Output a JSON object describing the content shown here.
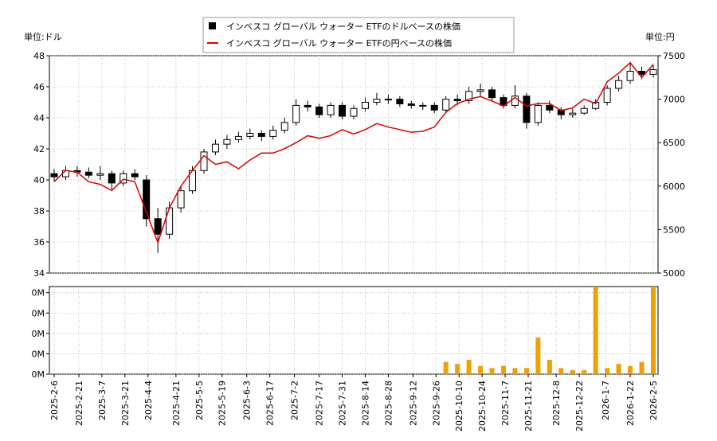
{
  "chart_data": [
    {
      "type": "candlestick",
      "ylabel": "単位:ドル",
      "y2label": "単位:円",
      "x": [
        "2025-2-6",
        "2025-2-13",
        "2025-2-20",
        "2025-2-27",
        "2025-3-6",
        "2025-3-13",
        "2025-3-20",
        "2025-3-27",
        "2025-4-3",
        "2025-4-10",
        "2025-4-17",
        "2025-4-24",
        "2025-5-1",
        "2025-5-8",
        "2025-5-15",
        "2025-5-22",
        "2025-5-29",
        "2025-6-5",
        "2025-6-12",
        "2025-6-19",
        "2025-6-26",
        "2025-7-3",
        "2025-7-10",
        "2025-7-17",
        "2025-7-24",
        "2025-7-31",
        "2025-8-7",
        "2025-8-14",
        "2025-8-21",
        "2025-8-28",
        "2025-9-4",
        "2025-9-11",
        "2025-9-18",
        "2025-9-25",
        "2025-10-2",
        "2025-10-9",
        "2025-10-16",
        "2025-10-23",
        "2025-10-30",
        "2025-11-6",
        "2025-11-13",
        "2025-11-20",
        "2025-11-27",
        "2025-12-4",
        "2025-12-11",
        "2025-12-18",
        "2025-12-25",
        "2026-1-1",
        "2026-1-8",
        "2026-1-15",
        "2026-1-22",
        "2026-1-29",
        "2026-2-5"
      ],
      "series": [
        {
          "name": "インベスコ グローバル ウォーター ETFのドルベースの株価",
          "color": "#000000",
          "open": [
            40.4,
            40.2,
            40.6,
            40.5,
            40.3,
            40.4,
            39.8,
            40.4,
            40.0,
            37.5,
            36.5,
            38.2,
            39.3,
            40.6,
            41.8,
            42.3,
            42.6,
            42.8,
            43.0,
            42.8,
            43.2,
            43.7,
            44.8,
            44.7,
            44.2,
            44.8,
            44.1,
            44.6,
            45.0,
            45.2,
            45.2,
            44.9,
            44.8,
            44.8,
            44.5,
            45.2,
            45.1,
            45.7,
            45.8,
            45.3,
            44.8,
            45.4,
            43.7,
            44.8,
            44.5,
            44.2,
            44.3,
            44.6,
            45.0,
            45.9,
            46.4,
            47.0,
            46.8
          ],
          "high": [
            40.7,
            40.9,
            40.9,
            40.8,
            40.9,
            40.6,
            40.6,
            40.7,
            40.3,
            38.2,
            38.6,
            39.6,
            40.9,
            42.0,
            42.6,
            42.9,
            43.1,
            43.3,
            43.2,
            43.5,
            44.0,
            45.2,
            45.1,
            44.9,
            45.0,
            45.0,
            44.8,
            45.3,
            45.6,
            45.5,
            45.4,
            45.1,
            45.0,
            45.0,
            45.4,
            45.5,
            46.0,
            46.2,
            46.0,
            45.5,
            46.1,
            45.6,
            45.0,
            45.1,
            44.7,
            44.6,
            44.8,
            45.2,
            46.1,
            46.7,
            47.6,
            47.3,
            47.4
          ],
          "low": [
            39.9,
            40.0,
            40.2,
            40.1,
            40.0,
            39.4,
            39.6,
            40.0,
            37.0,
            35.3,
            36.2,
            37.9,
            39.1,
            40.4,
            41.6,
            42.0,
            42.4,
            42.6,
            42.5,
            42.6,
            43.0,
            43.5,
            44.4,
            44.0,
            44.0,
            43.9,
            43.9,
            44.4,
            44.8,
            44.9,
            44.7,
            44.6,
            44.5,
            44.3,
            44.3,
            44.8,
            44.9,
            45.4,
            45.1,
            44.6,
            44.6,
            43.3,
            43.5,
            44.3,
            43.9,
            44.0,
            44.2,
            44.5,
            44.8,
            45.7,
            46.2,
            46.5,
            46.6
          ],
          "close": [
            40.2,
            40.6,
            40.5,
            40.3,
            40.4,
            39.8,
            40.4,
            40.2,
            37.5,
            36.5,
            38.2,
            39.3,
            40.6,
            41.8,
            42.3,
            42.6,
            42.8,
            43.0,
            42.8,
            43.2,
            43.7,
            44.8,
            44.7,
            44.2,
            44.8,
            44.1,
            44.6,
            45.0,
            45.2,
            45.2,
            44.9,
            44.8,
            44.8,
            44.5,
            45.2,
            45.1,
            45.7,
            45.8,
            45.3,
            44.8,
            45.4,
            43.7,
            44.8,
            44.5,
            44.2,
            44.3,
            44.6,
            45.0,
            45.9,
            46.4,
            47.0,
            46.8,
            47.1
          ]
        },
        {
          "name": "インベスコ グローバル ウォーター ETFの円ベースの株価",
          "color": "#dd0000",
          "axis": "y2",
          "values": [
            6050,
            6180,
            6160,
            6050,
            6020,
            5950,
            6080,
            6050,
            5700,
            5350,
            5750,
            6000,
            6180,
            6350,
            6250,
            6280,
            6200,
            6300,
            6380,
            6380,
            6430,
            6500,
            6580,
            6550,
            6580,
            6650,
            6600,
            6650,
            6720,
            6680,
            6650,
            6620,
            6630,
            6680,
            6850,
            6950,
            7000,
            7030,
            6980,
            6920,
            7020,
            6920,
            6950,
            6950,
            6870,
            6900,
            7000,
            6950,
            7200,
            7300,
            7420,
            7250,
            7400
          ]
        }
      ],
      "ylim": [
        34,
        48
      ],
      "yticks": [
        34,
        36,
        38,
        40,
        42,
        44,
        46,
        48
      ],
      "y2lim": [
        5000,
        7500
      ],
      "y2ticks": [
        5000,
        5500,
        6000,
        6500,
        7000,
        7500
      ],
      "grid": true
    },
    {
      "type": "bar",
      "color": "#f0a000",
      "x": [
        "2025-2-6",
        "2025-2-13",
        "2025-2-20",
        "2025-2-27",
        "2025-3-6",
        "2025-3-13",
        "2025-3-20",
        "2025-3-27",
        "2025-4-3",
        "2025-4-10",
        "2025-4-17",
        "2025-4-24",
        "2025-5-1",
        "2025-5-8",
        "2025-5-15",
        "2025-5-22",
        "2025-5-29",
        "2025-6-5",
        "2025-6-12",
        "2025-6-19",
        "2025-6-26",
        "2025-7-3",
        "2025-7-10",
        "2025-7-17",
        "2025-7-24",
        "2025-7-31",
        "2025-8-7",
        "2025-8-14",
        "2025-8-21",
        "2025-8-28",
        "2025-9-4",
        "2025-9-11",
        "2025-9-18",
        "2025-9-25",
        "2025-10-2",
        "2025-10-9",
        "2025-10-16",
        "2025-10-23",
        "2025-10-30",
        "2025-11-6",
        "2025-11-13",
        "2025-11-20",
        "2025-11-27",
        "2025-12-4",
        "2025-12-11",
        "2025-12-18",
        "2025-12-25",
        "2026-1-1",
        "2026-1-8",
        "2026-1-15",
        "2026-1-22",
        "2026-1-29",
        "2026-2-5"
      ],
      "values": [
        0,
        0,
        0,
        0,
        0,
        0,
        0,
        0,
        0,
        0,
        0,
        0,
        0,
        0,
        0,
        0,
        0,
        0,
        0,
        0,
        0,
        0,
        0,
        0,
        0,
        0,
        0,
        0,
        0,
        0,
        0,
        0,
        0,
        0,
        60000,
        50000,
        70000,
        40000,
        30000,
        40000,
        30000,
        30000,
        180000,
        70000,
        30000,
        20000,
        20000,
        430000,
        30000,
        50000,
        40000,
        60000,
        430000
      ],
      "ylim": [
        0,
        430000
      ],
      "yticks": [
        {
          "value": 0,
          "label": "0M"
        },
        {
          "value": 100000,
          "label": "0M"
        },
        {
          "value": 200000,
          "label": "0M"
        },
        {
          "value": 300000,
          "label": "0M"
        },
        {
          "value": 400000,
          "label": "0M"
        }
      ],
      "xticks": [
        "2025-2-6",
        "2025-2-21",
        "2025-3-7",
        "2025-3-21",
        "2025-4-4",
        "2025-4-21",
        "2025-5-5",
        "2025-5-19",
        "2025-6-3",
        "2025-6-17",
        "2025-7-2",
        "2025-7-17",
        "2025-7-31",
        "2025-8-14",
        "2025-8-28",
        "2025-9-12",
        "2025-9-26",
        "2025-10-10",
        "2025-10-24",
        "2025-11-7",
        "2025-11-21",
        "2025-12-8",
        "2025-12-22",
        "2026-1-7",
        "2026-1-22",
        "2026-2-5"
      ],
      "grid": true
    }
  ]
}
